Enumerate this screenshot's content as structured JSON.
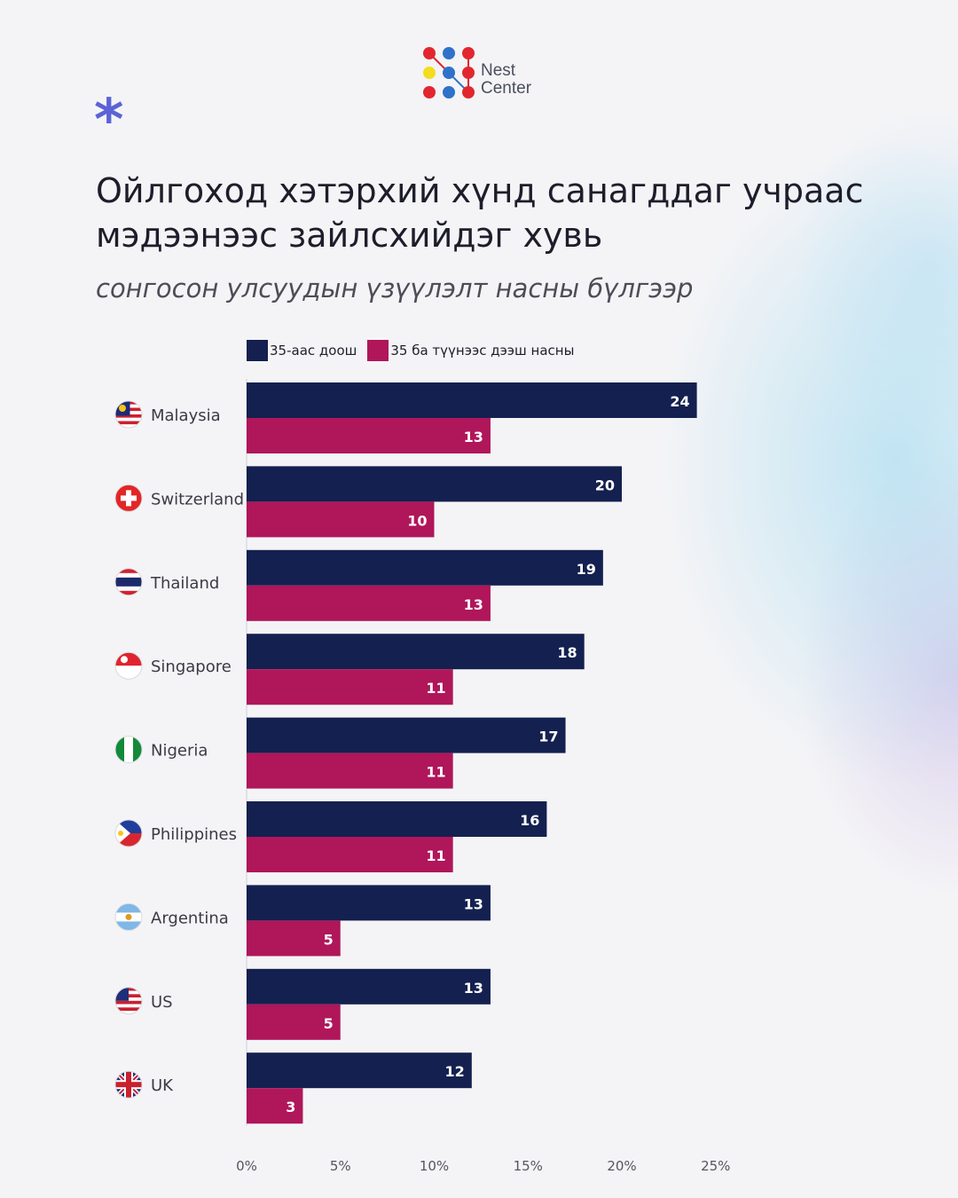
{
  "brand": {
    "name_line1": "Nest",
    "name_line2": "Center"
  },
  "decor": {
    "asterisk": "*"
  },
  "heading": {
    "title": "Ойлгоход хэтэрхий хүнд санагддаг учраас мэдээнээс зайлсхийдэг хувь",
    "subtitle": "сонгосон улсуудын үзүүлэлт насны бүлгээр"
  },
  "colors": {
    "under35": "#14204f",
    "over35": "#b0165a",
    "accent": "#5b63d6"
  },
  "chart_data": {
    "type": "bar",
    "orientation": "horizontal",
    "categories": [
      "Malaysia",
      "Switzerland",
      "Thailand",
      "Singapore",
      "Nigeria",
      "Philippines",
      "Argentina",
      "US",
      "UK"
    ],
    "flags": [
      "malaysia-flag-icon",
      "switzerland-flag-icon",
      "thailand-flag-icon",
      "singapore-flag-icon",
      "nigeria-flag-icon",
      "philippines-flag-icon",
      "argentina-flag-icon",
      "us-flag-icon",
      "uk-flag-icon"
    ],
    "series": [
      {
        "name": "35-аас доош",
        "color": "#14204f",
        "values": [
          24,
          20,
          19,
          18,
          17,
          16,
          13,
          13,
          12
        ]
      },
      {
        "name": "35 ба түүнээс дээш насны",
        "color": "#b0165a",
        "values": [
          13,
          10,
          13,
          11,
          11,
          11,
          5,
          5,
          3
        ]
      }
    ],
    "xlim": [
      0,
      25
    ],
    "xticks": [
      0,
      5,
      10,
      15,
      20,
      25
    ],
    "xtick_labels": [
      "0%",
      "5%",
      "10%",
      "15%",
      "20%",
      "25%"
    ],
    "legend_position": "top-left"
  }
}
